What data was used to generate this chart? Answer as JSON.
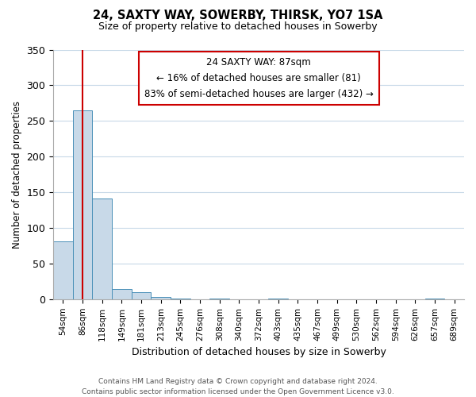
{
  "title": "24, SAXTY WAY, SOWERBY, THIRSK, YO7 1SA",
  "subtitle": "Size of property relative to detached houses in Sowerby",
  "xlabel": "Distribution of detached houses by size in Sowerby",
  "ylabel": "Number of detached properties",
  "bar_labels": [
    "54sqm",
    "86sqm",
    "118sqm",
    "149sqm",
    "181sqm",
    "213sqm",
    "245sqm",
    "276sqm",
    "308sqm",
    "340sqm",
    "372sqm",
    "403sqm",
    "435sqm",
    "467sqm",
    "499sqm",
    "530sqm",
    "562sqm",
    "594sqm",
    "626sqm",
    "657sqm",
    "689sqm"
  ],
  "bar_values": [
    81,
    265,
    141,
    14,
    10,
    3,
    1,
    0,
    1,
    0,
    0,
    1,
    0,
    0,
    0,
    0,
    0,
    0,
    0,
    1,
    0
  ],
  "bar_color": "#c8d9e8",
  "bar_edge_color": "#4a90b8",
  "vline_x_idx": 1,
  "vline_color": "#cc0000",
  "ylim": [
    0,
    350
  ],
  "yticks": [
    0,
    50,
    100,
    150,
    200,
    250,
    300,
    350
  ],
  "annotation_title": "24 SAXTY WAY: 87sqm",
  "annotation_line1": "← 16% of detached houses are smaller (81)",
  "annotation_line2": "83% of semi-detached houses are larger (432) →",
  "annotation_box_color": "#ffffff",
  "annotation_box_edge": "#cc0000",
  "footer_line1": "Contains HM Land Registry data © Crown copyright and database right 2024.",
  "footer_line2": "Contains public sector information licensed under the Open Government Licence v3.0.",
  "background_color": "#ffffff",
  "grid_color": "#c8d9e8"
}
